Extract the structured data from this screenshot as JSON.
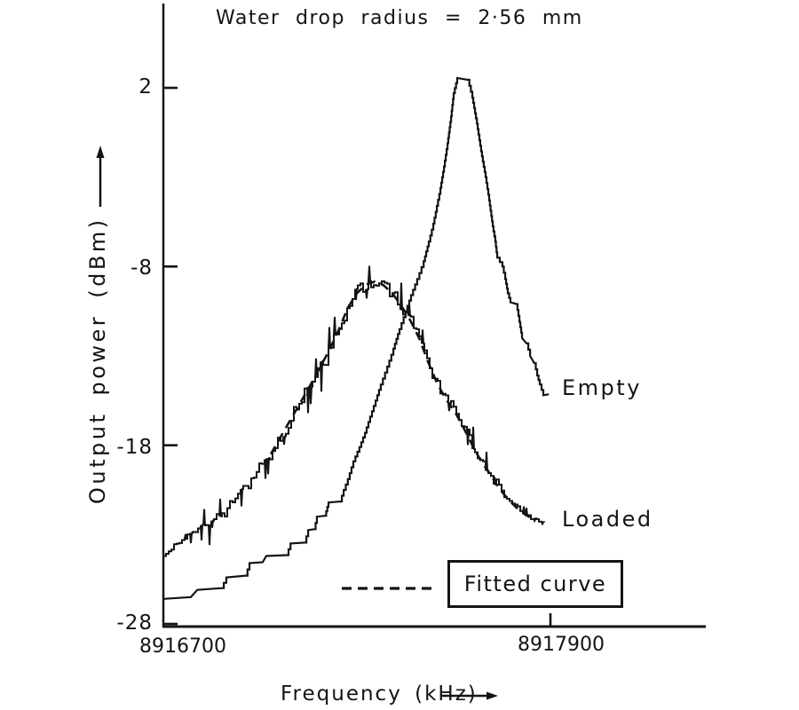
{
  "chart_data": {
    "type": "line",
    "title": "Water drop radius = 2·56 mm",
    "xlabel": "Frequency (kHz)",
    "ylabel": "Output power (dBm)",
    "x_ticks": [
      8916700,
      8917900
    ],
    "x_tick_labels": [
      "8916700",
      "8917900"
    ],
    "y_ticks": [
      2,
      -8,
      -18,
      -28
    ],
    "y_tick_labels": [
      "2",
      "-8",
      "-18",
      "-28"
    ],
    "xlim": [
      8916700,
      8918380
    ],
    "ylim": [
      -28.3,
      6.7
    ],
    "grid": false,
    "ink_color": "#141414",
    "background_color": "#ffffff",
    "legend": {
      "label": "Fitted curve",
      "line_style": "dashed",
      "position": "bottom-right-box"
    },
    "annotations": [
      {
        "text": "Empty"
      },
      {
        "text": "Loaded"
      }
    ],
    "axis_arrows": {
      "x": "right",
      "y": "up"
    },
    "series": [
      {
        "name": "Empty",
        "render": "staircase",
        "line_style": "solid",
        "points": [
          [
            8916700,
            -26.6
          ],
          [
            8916785,
            -26.5
          ],
          [
            8916805,
            -26.1
          ],
          [
            8916880,
            -26.0
          ],
          [
            8916895,
            -25.4
          ],
          [
            8916955,
            -25.3
          ],
          [
            8916967,
            -24.6
          ],
          [
            8917008,
            -24.55
          ],
          [
            8917019,
            -24.2
          ],
          [
            8917082,
            -24.15
          ],
          [
            8917094,
            -23.5
          ],
          [
            8917138,
            -23.45
          ],
          [
            8917149,
            -22.75
          ],
          [
            8917168,
            -22.7
          ],
          [
            8917176,
            -22.0
          ],
          [
            8917201,
            -21.95
          ],
          [
            8917212,
            -21.2
          ],
          [
            8917248,
            -21.15
          ],
          [
            8917259,
            -20.5
          ],
          [
            8917272,
            -19.9
          ],
          [
            8917289,
            -18.9
          ],
          [
            8917308,
            -18.1
          ],
          [
            8917325,
            -17.3
          ],
          [
            8917341,
            -16.4
          ],
          [
            8917358,
            -15.5
          ],
          [
            8917374,
            -14.6
          ],
          [
            8917394,
            -13.6
          ],
          [
            8917413,
            -12.6
          ],
          [
            8917432,
            -11.5
          ],
          [
            8917451,
            -10.5
          ],
          [
            8917468,
            -9.6
          ],
          [
            8917487,
            -8.7
          ],
          [
            8917507,
            -7.7
          ],
          [
            8917523,
            -6.6
          ],
          [
            8917537,
            -5.6
          ],
          [
            8917548,
            -4.6
          ],
          [
            8917559,
            -3.6
          ],
          [
            8917570,
            -2.4
          ],
          [
            8917581,
            -1.1
          ],
          [
            8917592,
            0.4
          ],
          [
            8917600,
            1.7
          ],
          [
            8917611,
            2.55
          ],
          [
            8917644,
            2.45
          ],
          [
            8917658,
            1.45
          ],
          [
            8917672,
            0.0
          ],
          [
            8917685,
            -1.55
          ],
          [
            8917699,
            -3.0
          ],
          [
            8917710,
            -4.3
          ],
          [
            8917721,
            -5.75
          ],
          [
            8917729,
            -6.6
          ],
          [
            8917735,
            -7.5
          ],
          [
            8917751,
            -8.0
          ],
          [
            8917760,
            -8.7
          ],
          [
            8917768,
            -9.5
          ],
          [
            8917776,
            -10.0
          ],
          [
            8917795,
            -10.1
          ],
          [
            8917804,
            -11.1
          ],
          [
            8917812,
            -12.0
          ],
          [
            8917826,
            -12.3
          ],
          [
            8917837,
            -13.0
          ],
          [
            8917850,
            -13.4
          ],
          [
            8917859,
            -14.1
          ],
          [
            8917867,
            -14.6
          ],
          [
            8917878,
            -15.2
          ],
          [
            8917895,
            -15.15
          ]
        ]
      },
      {
        "name": "Loaded",
        "render": "noisy",
        "line_style": "solid",
        "noise": {
          "seed": 11,
          "spike_probability": 0.2,
          "max_spike_db": 1.35,
          "jitter_db": 0.3
        },
        "points": [
          [
            8916700,
            -24.2
          ],
          [
            8916744,
            -23.5
          ],
          [
            8916785,
            -22.9
          ],
          [
            8916827,
            -22.5
          ],
          [
            8916868,
            -22.0
          ],
          [
            8916909,
            -21.3
          ],
          [
            8916950,
            -20.5
          ],
          [
            8916992,
            -19.5
          ],
          [
            8917033,
            -18.5
          ],
          [
            8917074,
            -17.3
          ],
          [
            8917116,
            -15.8
          ],
          [
            8917157,
            -14.5
          ],
          [
            8917190,
            -13.6
          ],
          [
            8917217,
            -12.7
          ],
          [
            8917245,
            -11.5
          ],
          [
            8917272,
            -10.2
          ],
          [
            8917300,
            -9.4
          ],
          [
            8917328,
            -9.0
          ],
          [
            8917355,
            -8.9
          ],
          [
            8917383,
            -9.1
          ],
          [
            8917410,
            -9.5
          ],
          [
            8917438,
            -10.2
          ],
          [
            8917465,
            -11.0
          ],
          [
            8917493,
            -12.1
          ],
          [
            8917520,
            -13.4
          ],
          [
            8917548,
            -14.5
          ],
          [
            8917575,
            -15.4
          ],
          [
            8917603,
            -16.0
          ],
          [
            8917630,
            -17.0
          ],
          [
            8917658,
            -18.0
          ],
          [
            8917685,
            -18.9
          ],
          [
            8917713,
            -19.7
          ],
          [
            8917740,
            -20.4
          ],
          [
            8917768,
            -21.0
          ],
          [
            8917795,
            -21.5
          ],
          [
            8917823,
            -22.0
          ],
          [
            8917850,
            -22.2
          ],
          [
            8917881,
            -22.25
          ]
        ]
      },
      {
        "name": "Fitted curve",
        "render": "dashed",
        "line_style": "dashed",
        "points": [
          [
            8917033,
            -18.5
          ],
          [
            8917074,
            -17.2
          ],
          [
            8917116,
            -15.9
          ],
          [
            8917157,
            -14.6
          ],
          [
            8917190,
            -13.5
          ],
          [
            8917217,
            -12.6
          ],
          [
            8917245,
            -11.5
          ],
          [
            8917272,
            -10.3
          ],
          [
            8917300,
            -9.5
          ],
          [
            8917328,
            -9.0
          ],
          [
            8917355,
            -8.85
          ],
          [
            8917383,
            -9.05
          ],
          [
            8917410,
            -9.5
          ],
          [
            8917438,
            -10.2
          ],
          [
            8917465,
            -11.0
          ],
          [
            8917493,
            -12.0
          ],
          [
            8917520,
            -13.3
          ],
          [
            8917548,
            -14.5
          ],
          [
            8917575,
            -15.4
          ],
          [
            8917603,
            -16.1
          ],
          [
            8917630,
            -17.0
          ],
          [
            8917658,
            -18.0
          ],
          [
            8917685,
            -18.9
          ],
          [
            8917713,
            -19.6
          ],
          [
            8917740,
            -20.4
          ],
          [
            8917768,
            -21.0
          ],
          [
            8917795,
            -21.5
          ],
          [
            8917823,
            -21.9
          ],
          [
            8917855,
            -22.2
          ]
        ]
      }
    ]
  }
}
